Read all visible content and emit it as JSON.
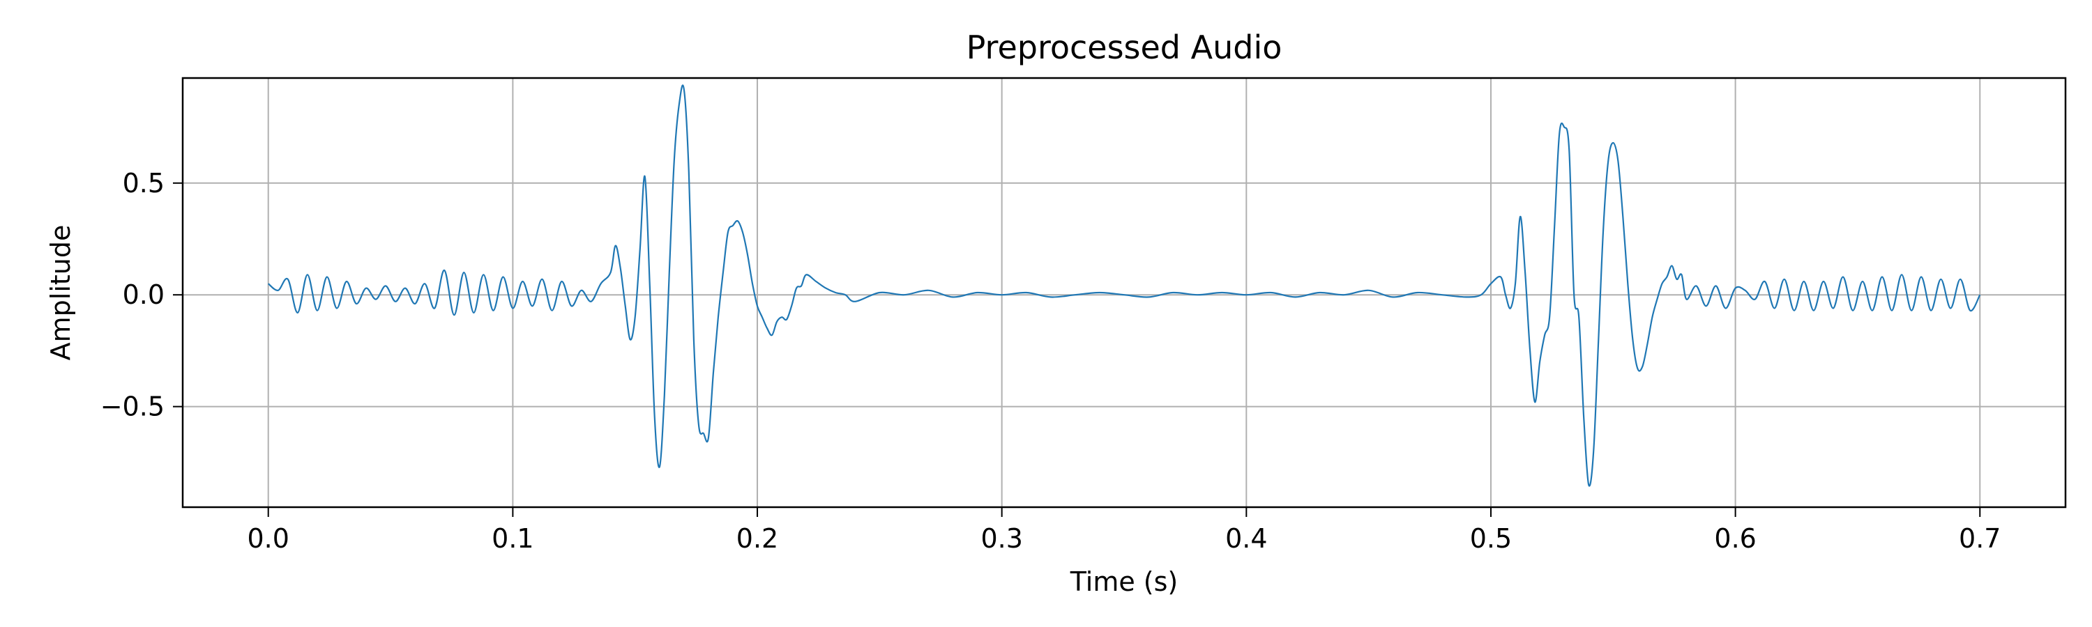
{
  "chart_data": {
    "type": "line",
    "title": "Preprocessed Audio",
    "xlabel": "Time (s)",
    "ylabel": "Amplitude",
    "xlim": [
      -0.035,
      0.735
    ],
    "ylim": [
      -0.95,
      0.97
    ],
    "grid": true,
    "x_ticks": [
      0.0,
      0.1,
      0.2,
      0.3,
      0.4,
      0.5,
      0.6,
      0.7
    ],
    "x_tick_labels": [
      "0.0",
      "0.1",
      "0.2",
      "0.3",
      "0.4",
      "0.5",
      "0.6",
      "0.7"
    ],
    "y_ticks": [
      -0.5,
      0.0,
      0.5
    ],
    "y_tick_labels": [
      "−0.5",
      "0.0",
      "0.5"
    ],
    "series": [
      {
        "color": "#1f77b4",
        "x": [
          0.0,
          0.004,
          0.008,
          0.012,
          0.016,
          0.02,
          0.024,
          0.028,
          0.032,
          0.036,
          0.04,
          0.044,
          0.048,
          0.052,
          0.056,
          0.06,
          0.064,
          0.068,
          0.072,
          0.076,
          0.08,
          0.084,
          0.088,
          0.092,
          0.096,
          0.1,
          0.104,
          0.108,
          0.112,
          0.116,
          0.12,
          0.124,
          0.128,
          0.132,
          0.136,
          0.14,
          0.142,
          0.144,
          0.146,
          0.148,
          0.15,
          0.152,
          0.154,
          0.156,
          0.158,
          0.16,
          0.162,
          0.164,
          0.166,
          0.168,
          0.17,
          0.172,
          0.174,
          0.176,
          0.178,
          0.18,
          0.182,
          0.184,
          0.186,
          0.188,
          0.19,
          0.192,
          0.194,
          0.196,
          0.198,
          0.2,
          0.202,
          0.204,
          0.206,
          0.208,
          0.21,
          0.212,
          0.214,
          0.216,
          0.218,
          0.22,
          0.224,
          0.228,
          0.232,
          0.236,
          0.24,
          0.25,
          0.26,
          0.27,
          0.28,
          0.29,
          0.3,
          0.31,
          0.32,
          0.33,
          0.34,
          0.35,
          0.36,
          0.37,
          0.38,
          0.39,
          0.4,
          0.41,
          0.42,
          0.43,
          0.44,
          0.45,
          0.46,
          0.47,
          0.48,
          0.49,
          0.496,
          0.5,
          0.504,
          0.506,
          0.508,
          0.51,
          0.512,
          0.514,
          0.516,
          0.518,
          0.52,
          0.522,
          0.524,
          0.526,
          0.528,
          0.53,
          0.532,
          0.534,
          0.536,
          0.538,
          0.54,
          0.542,
          0.544,
          0.546,
          0.548,
          0.55,
          0.552,
          0.554,
          0.556,
          0.558,
          0.56,
          0.562,
          0.564,
          0.566,
          0.568,
          0.57,
          0.572,
          0.574,
          0.576,
          0.578,
          0.58,
          0.584,
          0.588,
          0.592,
          0.596,
          0.6,
          0.604,
          0.608,
          0.612,
          0.616,
          0.62,
          0.624,
          0.628,
          0.632,
          0.636,
          0.64,
          0.644,
          0.648,
          0.652,
          0.656,
          0.66,
          0.664,
          0.668,
          0.672,
          0.676,
          0.68,
          0.684,
          0.688,
          0.692,
          0.696,
          0.7
        ],
        "y": [
          0.05,
          0.02,
          0.07,
          -0.08,
          0.09,
          -0.07,
          0.08,
          -0.06,
          0.06,
          -0.04,
          0.03,
          -0.02,
          0.04,
          -0.03,
          0.03,
          -0.04,
          0.05,
          -0.06,
          0.11,
          -0.09,
          0.1,
          -0.08,
          0.09,
          -0.07,
          0.08,
          -0.06,
          0.06,
          -0.05,
          0.07,
          -0.07,
          0.06,
          -0.05,
          0.02,
          -0.03,
          0.05,
          0.1,
          0.22,
          0.12,
          -0.05,
          -0.2,
          -0.1,
          0.2,
          0.53,
          0.05,
          -0.55,
          -0.77,
          -0.45,
          0.1,
          0.6,
          0.85,
          0.92,
          0.55,
          -0.2,
          -0.58,
          -0.62,
          -0.64,
          -0.35,
          -0.1,
          0.1,
          0.28,
          0.31,
          0.33,
          0.28,
          0.18,
          0.05,
          -0.05,
          -0.1,
          -0.15,
          -0.18,
          -0.12,
          -0.1,
          -0.11,
          -0.05,
          0.03,
          0.04,
          0.09,
          0.06,
          0.03,
          0.01,
          0.0,
          -0.03,
          0.01,
          0.0,
          0.02,
          -0.01,
          0.01,
          0.0,
          0.01,
          -0.01,
          0.0,
          0.01,
          0.0,
          -0.01,
          0.01,
          0.0,
          0.01,
          0.0,
          0.01,
          -0.01,
          0.01,
          0.0,
          0.02,
          -0.01,
          0.01,
          0.0,
          -0.01,
          0.0,
          0.05,
          0.08,
          0.0,
          -0.06,
          0.05,
          0.35,
          0.1,
          -0.25,
          -0.48,
          -0.3,
          -0.18,
          -0.1,
          0.3,
          0.72,
          0.75,
          0.65,
          0.0,
          -0.1,
          -0.55,
          -0.85,
          -0.7,
          -0.2,
          0.3,
          0.6,
          0.68,
          0.6,
          0.35,
          0.05,
          -0.2,
          -0.33,
          -0.32,
          -0.22,
          -0.1,
          -0.02,
          0.05,
          0.08,
          0.13,
          0.07,
          0.09,
          -0.02,
          0.04,
          -0.05,
          0.04,
          -0.06,
          0.03,
          0.02,
          -0.02,
          0.06,
          -0.06,
          0.07,
          -0.07,
          0.06,
          -0.07,
          0.06,
          -0.06,
          0.08,
          -0.07,
          0.06,
          -0.07,
          0.08,
          -0.07,
          0.09,
          -0.07,
          0.08,
          -0.07,
          0.07,
          -0.06,
          0.07,
          -0.07,
          0.0
        ]
      }
    ]
  }
}
